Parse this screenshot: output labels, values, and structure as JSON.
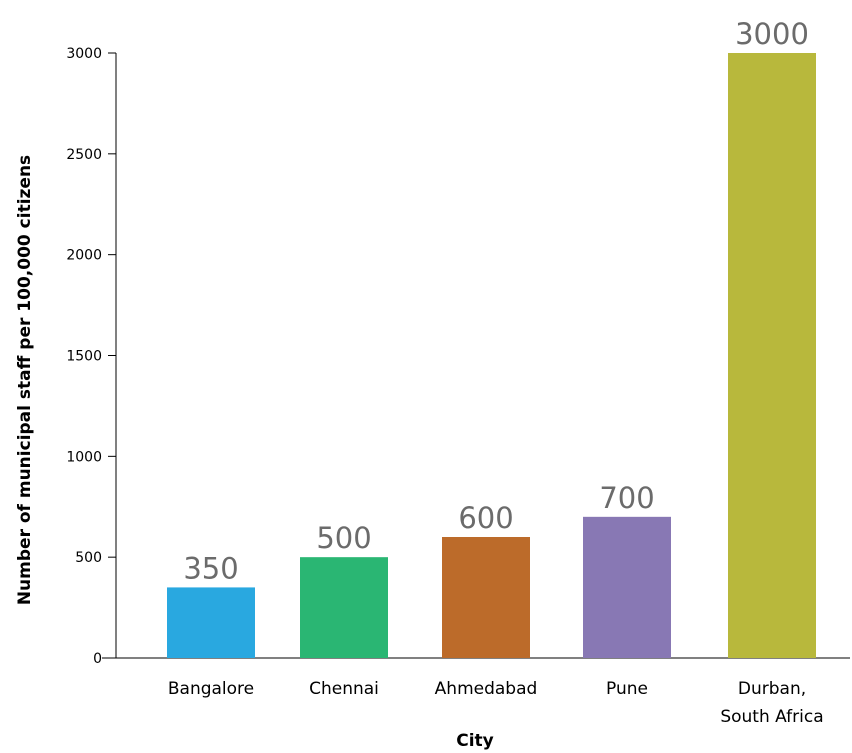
{
  "chart_data": {
    "type": "bar",
    "title": "",
    "xlabel": "City",
    "ylabel": "Number of municipal staff per 100,000 citizens",
    "categories": [
      [
        "Bangalore"
      ],
      [
        "Chennai"
      ],
      [
        "Ahmedabad"
      ],
      [
        "Pune"
      ],
      [
        "Durban,",
        "South Africa"
      ]
    ],
    "values": [
      350,
      500,
      600,
      700,
      3000
    ],
    "data_labels": [
      "350",
      "500",
      "600",
      "700",
      "3000"
    ],
    "colors": [
      "#29a8e0",
      "#2ab673",
      "#bc6b2a",
      "#8878b4",
      "#b8b83c"
    ],
    "ylim": [
      0,
      3000
    ],
    "yticks": [
      0,
      500,
      1000,
      1500,
      2000,
      2500,
      3000
    ],
    "grid": false,
    "legend": "none"
  }
}
